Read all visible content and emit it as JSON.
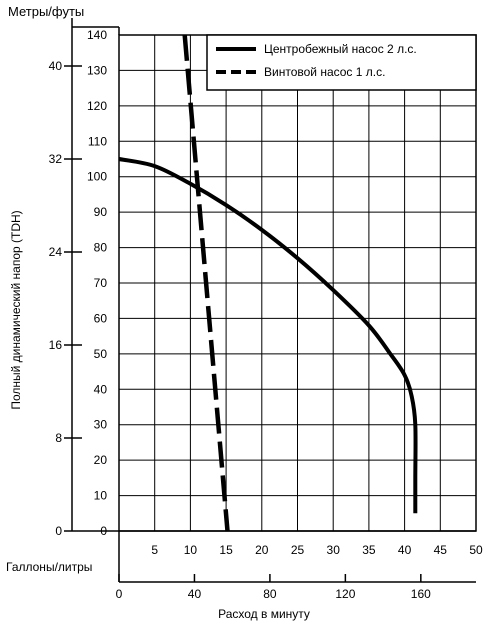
{
  "chart_data": {
    "type": "line",
    "top_left_label": "Метры/футы",
    "left_axis_label": "Полный динамический напор (TDH)",
    "bottom_left_label": "Галлоны/литры",
    "bottom_axis_label": "Расход в минуту",
    "feet_ticks": [
      0,
      10,
      20,
      30,
      40,
      50,
      60,
      70,
      80,
      90,
      100,
      110,
      120,
      130,
      140
    ],
    "meter_ticks": [
      8,
      16,
      24,
      32,
      40
    ],
    "gallon_ticks": [
      5,
      10,
      15,
      20,
      25,
      30,
      35,
      40,
      45,
      50
    ],
    "liter_ticks": [
      0,
      40,
      80,
      120,
      160
    ],
    "xlim": [
      0,
      50
    ],
    "ylim": [
      0,
      140
    ],
    "grid": true,
    "legend_position": "top-right",
    "series": [
      {
        "name": "Центробежный насос 2 л.с.",
        "style": "solid",
        "color": "#000000",
        "points": [
          [
            0,
            105
          ],
          [
            5,
            103
          ],
          [
            10,
            98
          ],
          [
            15,
            92
          ],
          [
            20,
            85
          ],
          [
            25,
            77
          ],
          [
            30,
            68
          ],
          [
            35,
            58
          ],
          [
            38,
            50
          ],
          [
            40,
            44
          ],
          [
            41,
            38
          ],
          [
            41.5,
            30
          ],
          [
            41.5,
            15
          ],
          [
            41.5,
            5
          ]
        ]
      },
      {
        "name": "Винтовой насос 1 л.с.",
        "style": "dashed",
        "color": "#000000",
        "points": [
          [
            9.2,
            140
          ],
          [
            15.2,
            0
          ]
        ]
      }
    ]
  }
}
